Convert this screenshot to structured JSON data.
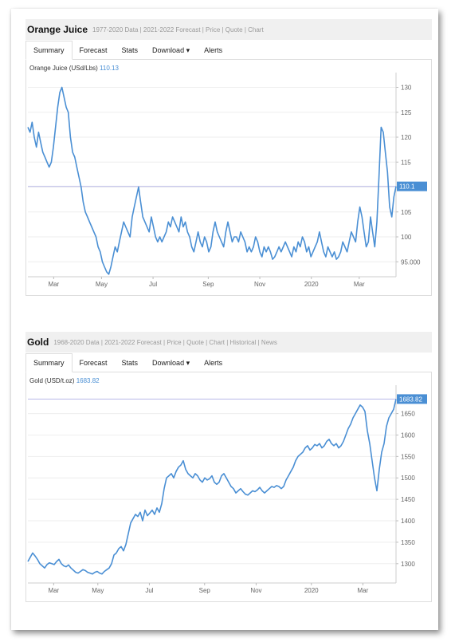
{
  "colors": {
    "line": "#4a8fd4",
    "price_line": "#b8b8e8",
    "badge": "#4a8fd4",
    "grid": "#eeeeee",
    "axis_text": "#666666"
  },
  "panels": [
    {
      "title": "Orange Juice",
      "links": "1977-2020 Data | 2021-2022 Forecast | Price | Quote | Chart",
      "tabs": [
        "Summary",
        "Forecast",
        "Stats",
        "Download ▾",
        "Alerts"
      ],
      "legend_label": "Orange Juice (USd/Lbs)",
      "legend_value": "110.13",
      "badge": "110.1"
    },
    {
      "title": "Gold",
      "links": "1968-2020 Data | 2021-2022 Forecast | Price | Quote | Chart | Historical | News",
      "tabs": [
        "Summary",
        "Forecast",
        "Stats",
        "Download ▾",
        "Alerts"
      ],
      "legend_label": "Gold (USD/t.oz)",
      "legend_value": "1683.82",
      "badge": "1683.82"
    }
  ],
  "chart_data": [
    {
      "type": "line",
      "title": "Orange Juice",
      "ylabel": "USd/Lbs",
      "ylim": [
        92,
        132
      ],
      "yticks": [
        95,
        100,
        105,
        110,
        115,
        120,
        125,
        130
      ],
      "ytick_labels": [
        "95.000",
        "100",
        "105",
        "110",
        "115",
        "120",
        "125",
        "130"
      ],
      "x_labels": [
        "Mar",
        "May",
        "Jul",
        "Sep",
        "Nov",
        "2020",
        "Mar"
      ],
      "x_label_pos": [
        0.07,
        0.2,
        0.34,
        0.49,
        0.63,
        0.77,
        0.9
      ],
      "grid": true,
      "current_value": 110.13,
      "series": [
        {
          "name": "Orange Juice",
          "values": [
            122,
            121,
            123,
            120,
            118,
            121,
            119,
            117,
            116,
            115,
            114,
            115,
            118,
            122,
            126,
            129,
            130,
            128,
            126,
            125,
            120,
            117,
            116,
            114,
            112,
            110,
            107,
            105,
            104,
            103,
            102,
            101,
            100,
            98,
            97,
            95,
            94,
            93,
            92.5,
            94,
            96,
            98,
            97,
            99,
            101,
            103,
            102,
            101,
            100,
            104,
            106,
            108,
            110,
            107,
            104,
            103,
            102,
            101,
            104,
            102,
            100,
            99,
            100,
            99,
            100,
            101,
            103,
            102,
            104,
            103,
            102,
            101,
            104,
            102,
            103,
            101,
            100,
            98,
            97,
            99,
            101,
            99,
            98,
            100,
            99,
            97,
            98,
            101,
            103,
            101,
            100,
            99,
            98,
            101,
            103,
            101,
            99,
            100,
            100,
            99,
            101,
            100,
            99,
            97,
            98,
            97,
            98,
            100,
            99,
            97,
            96,
            98,
            97,
            98,
            97,
            95.5,
            96,
            97,
            98,
            97,
            98,
            99,
            98,
            97,
            96,
            98,
            97,
            99,
            98,
            100,
            99,
            97,
            98,
            96,
            97,
            98,
            99,
            101,
            99,
            97,
            96,
            98,
            97,
            96,
            97,
            95.5,
            96,
            97,
            99,
            98,
            97,
            99,
            101,
            100,
            99,
            103,
            106,
            104,
            101,
            98,
            99,
            104,
            101,
            98,
            103,
            112,
            122,
            121,
            117,
            113,
            106,
            104,
            108,
            110.13
          ]
        }
      ]
    },
    {
      "type": "line",
      "title": "Gold",
      "ylabel": "USD/t.oz",
      "ylim": [
        1255,
        1705
      ],
      "yticks": [
        1300,
        1350,
        1400,
        1450,
        1500,
        1550,
        1600,
        1650
      ],
      "ytick_labels": [
        "1300",
        "1350",
        "1400",
        "1450",
        "1500",
        "1550",
        "1600",
        "1650"
      ],
      "x_labels": [
        "Mar",
        "May",
        "Jul",
        "Sep",
        "Nov",
        "2020",
        "Mar"
      ],
      "x_label_pos": [
        0.07,
        0.19,
        0.33,
        0.48,
        0.62,
        0.77,
        0.91
      ],
      "grid": true,
      "current_value": 1683.82,
      "series": [
        {
          "name": "Gold",
          "values": [
            1305,
            1315,
            1325,
            1318,
            1310,
            1300,
            1295,
            1290,
            1298,
            1302,
            1300,
            1298,
            1305,
            1310,
            1300,
            1295,
            1293,
            1297,
            1290,
            1285,
            1280,
            1278,
            1282,
            1286,
            1284,
            1280,
            1278,
            1276,
            1280,
            1282,
            1278,
            1276,
            1282,
            1286,
            1290,
            1300,
            1320,
            1325,
            1335,
            1340,
            1330,
            1345,
            1370,
            1395,
            1405,
            1415,
            1410,
            1420,
            1400,
            1425,
            1412,
            1418,
            1425,
            1415,
            1430,
            1420,
            1440,
            1475,
            1500,
            1505,
            1510,
            1500,
            1515,
            1525,
            1530,
            1540,
            1520,
            1510,
            1505,
            1500,
            1510,
            1505,
            1495,
            1490,
            1500,
            1495,
            1498,
            1505,
            1490,
            1485,
            1490,
            1505,
            1510,
            1500,
            1490,
            1480,
            1475,
            1465,
            1470,
            1475,
            1468,
            1462,
            1460,
            1465,
            1470,
            1468,
            1472,
            1478,
            1470,
            1465,
            1470,
            1475,
            1480,
            1478,
            1482,
            1480,
            1475,
            1480,
            1495,
            1505,
            1515,
            1525,
            1540,
            1550,
            1555,
            1560,
            1570,
            1575,
            1565,
            1570,
            1578,
            1575,
            1580,
            1570,
            1575,
            1585,
            1590,
            1580,
            1575,
            1580,
            1570,
            1575,
            1585,
            1600,
            1615,
            1625,
            1640,
            1650,
            1660,
            1670,
            1665,
            1655,
            1610,
            1580,
            1540,
            1500,
            1470,
            1520,
            1560,
            1580,
            1620,
            1640,
            1650,
            1660,
            1683.82
          ]
        }
      ]
    }
  ]
}
